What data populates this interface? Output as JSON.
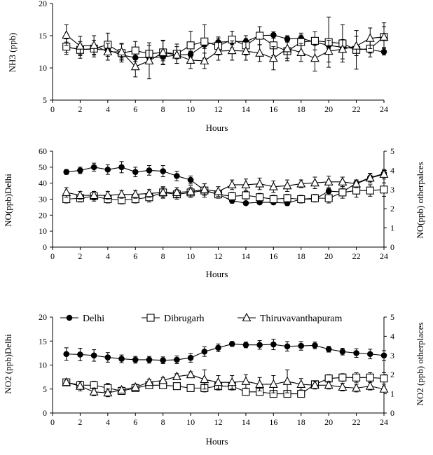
{
  "chart_data": [
    {
      "type": "line",
      "x": [
        1,
        2,
        3,
        4,
        5,
        6,
        7,
        8,
        9,
        10,
        11,
        12,
        13,
        14,
        15,
        16,
        17,
        18,
        19,
        20,
        21,
        22,
        23,
        24
      ],
      "xlabel": "Hours",
      "ylabel": "NH3 (ppb)",
      "ylim": [
        5,
        20
      ],
      "yticks": [
        5,
        10,
        15,
        20
      ],
      "xlim": [
        0,
        24
      ],
      "xticks": [
        0,
        2,
        4,
        6,
        8,
        10,
        12,
        14,
        16,
        18,
        20,
        22,
        24
      ],
      "series": [
        {
          "name": "Delhi",
          "marker": "circle",
          "axis": "left",
          "values": [
            13.2,
            12.9,
            12.9,
            12.8,
            12.0,
            11.6,
            11.6,
            11.7,
            12.0,
            12.1,
            13.6,
            14.0,
            14.1,
            14.1,
            15.0,
            15.1,
            14.5,
            14.6,
            14.0,
            13.5,
            13.2,
            13.0,
            12.8,
            12.5
          ],
          "errors": [
            0.8,
            0.8,
            0.8,
            0.6,
            0.6,
            0.6,
            0.6,
            0.6,
            0.6,
            0.5,
            0.6,
            0.6,
            0.5,
            0.5,
            0.5,
            0.5,
            0.5,
            0.5,
            0.5,
            0.5,
            0.5,
            0.5,
            0.5,
            0.5
          ]
        },
        {
          "name": "Dibrugarh",
          "marker": "square",
          "axis": "left",
          "values": [
            13.3,
            12.8,
            13.0,
            13.6,
            12.3,
            12.7,
            12.2,
            12.4,
            12.2,
            13.5,
            14.1,
            13.4,
            14.4,
            13.5,
            15.0,
            13.5,
            12.6,
            14.0,
            14.2,
            14.0,
            13.8,
            12.8,
            13.0,
            14.8
          ],
          "errors": [
            1.2,
            1.3,
            1.3,
            1.8,
            1.4,
            1.4,
            1.3,
            1.9,
            1.5,
            2.2,
            2.6,
            1.4,
            1.3,
            1.5,
            1.4,
            1.6,
            1.5,
            1.4,
            1.4,
            3.9,
            2.9,
            3.0,
            1.3,
            1.6
          ]
        },
        {
          "name": "Thiruvavanthapuram",
          "marker": "triangle",
          "axis": "left",
          "values": [
            15.1,
            13.4,
            13.5,
            12.5,
            12.5,
            10.2,
            11.1,
            12.4,
            12.0,
            11.2,
            11.1,
            12.6,
            12.7,
            12.6,
            12.3,
            11.5,
            13.0,
            12.4,
            11.5,
            12.6,
            12.9,
            13.4,
            14.6,
            14.8
          ],
          "errors": [
            1.6,
            1.5,
            1.5,
            1.3,
            1.3,
            1.6,
            2.8,
            1.8,
            1.3,
            1.3,
            1.2,
            1.4,
            1.5,
            1.4,
            1.3,
            1.8,
            1.5,
            1.4,
            2.0,
            1.7,
            1.5,
            1.5,
            1.6,
            2.2
          ]
        }
      ]
    },
    {
      "type": "line",
      "x": [
        1,
        2,
        3,
        4,
        5,
        6,
        7,
        8,
        9,
        10,
        11,
        12,
        13,
        14,
        15,
        16,
        17,
        18,
        19,
        20,
        21,
        22,
        23,
        24
      ],
      "xlabel": "Hours",
      "ylabel": "NO(ppb)Delhi",
      "y2label": "NO(ppb) otherpalces",
      "ylim": [
        0,
        60
      ],
      "yticks": [
        0,
        10,
        20,
        30,
        40,
        50,
        60
      ],
      "y2lim": [
        0,
        5
      ],
      "y2ticks": [
        0,
        1,
        2,
        3,
        4,
        5
      ],
      "xlim": [
        0,
        24
      ],
      "xticks": [
        0,
        2,
        4,
        6,
        8,
        10,
        12,
        14,
        16,
        18,
        20,
        22,
        24
      ],
      "series": [
        {
          "name": "Delhi",
          "marker": "circle",
          "axis": "left",
          "values": [
            47,
            48,
            50,
            48.5,
            50,
            47,
            48,
            47.5,
            44.5,
            42,
            35.5,
            33,
            29,
            27.5,
            28,
            28,
            27.5,
            30,
            30,
            35,
            34.5,
            40,
            43.5,
            46
          ],
          "errors": [
            1.5,
            2,
            2.5,
            3,
            3.5,
            3,
            3,
            3.5,
            3,
            2.5,
            2,
            2,
            1.5,
            1.2,
            1.2,
            1.2,
            1.5,
            1.5,
            1.5,
            1.5,
            2,
            2,
            2.5,
            2
          ]
        },
        {
          "name": "Dibrugarh",
          "marker": "square",
          "axis": "right",
          "values": [
            2.5,
            2.55,
            2.65,
            2.5,
            2.45,
            2.5,
            2.6,
            2.85,
            2.75,
            2.85,
            2.95,
            2.75,
            2.65,
            2.7,
            2.6,
            2.5,
            2.55,
            2.5,
            2.55,
            2.55,
            2.85,
            2.95,
            2.95,
            3.0
          ],
          "errors": [
            0.2,
            0.2,
            0.25,
            0.2,
            0.2,
            0.2,
            0.25,
            0.3,
            0.25,
            0.25,
            0.35,
            0.2,
            0.2,
            0.2,
            0.2,
            0.2,
            0.2,
            0.2,
            0.2,
            0.25,
            0.3,
            0.35,
            0.3,
            0.35
          ]
        },
        {
          "name": "Thiruvavanthapuram",
          "marker": "triangle",
          "axis": "right",
          "values": [
            2.85,
            2.7,
            2.7,
            2.7,
            2.75,
            2.75,
            2.8,
            2.85,
            2.85,
            2.9,
            3.0,
            2.9,
            3.25,
            3.25,
            3.3,
            3.15,
            3.2,
            3.3,
            3.35,
            3.4,
            3.4,
            3.3,
            3.6,
            3.8
          ],
          "errors": [
            0.25,
            0.2,
            0.2,
            0.2,
            0.2,
            0.2,
            0.2,
            0.25,
            0.25,
            0.3,
            0.3,
            0.25,
            0.25,
            0.3,
            0.3,
            0.3,
            0.3,
            0.2,
            0.3,
            0.3,
            0.25,
            0.2,
            0.25,
            0.25
          ]
        }
      ]
    },
    {
      "type": "line",
      "x": [
        1,
        2,
        3,
        4,
        5,
        6,
        7,
        8,
        9,
        10,
        11,
        12,
        13,
        14,
        15,
        16,
        17,
        18,
        19,
        20,
        21,
        22,
        23,
        24
      ],
      "xlabel": "Hours",
      "ylabel": "NO2 (ppb)Delhi",
      "y2label": "NO2 (ppb) otherplaces",
      "ylim": [
        0,
        20
      ],
      "yticks": [
        0,
        5,
        10,
        15,
        20
      ],
      "y2lim": [
        0,
        5
      ],
      "y2ticks": [
        0,
        1,
        2,
        3,
        4,
        5
      ],
      "xlim": [
        0,
        24
      ],
      "xticks": [
        0,
        2,
        4,
        6,
        8,
        10,
        12,
        14,
        16,
        18,
        20,
        22,
        24
      ],
      "legend": {
        "position": "top",
        "entries": [
          "Delhi",
          "Dibrugarh",
          "Thiruvavanthapuram"
        ]
      },
      "series": [
        {
          "name": "Delhi",
          "marker": "circle",
          "axis": "left",
          "values": [
            12.3,
            12.2,
            12.0,
            11.6,
            11.3,
            11.1,
            11.1,
            11.0,
            11.1,
            11.5,
            12.8,
            13.6,
            14.4,
            14.2,
            14.2,
            14.3,
            13.9,
            14.0,
            14.1,
            13.3,
            12.8,
            12.5,
            12.3,
            12.0
          ],
          "errors": [
            1.3,
            1.3,
            1.2,
            1.0,
            0.8,
            0.7,
            0.7,
            0.7,
            0.8,
            0.9,
            1.0,
            0.8,
            0.5,
            0.6,
            0.9,
            1.1,
            1.0,
            0.9,
            0.7,
            0.6,
            0.7,
            0.9,
            1.0,
            1.0
          ]
        },
        {
          "name": "Dibrugarh",
          "marker": "square",
          "axis": "right",
          "values": [
            1.6,
            1.45,
            1.45,
            1.3,
            1.15,
            1.3,
            1.45,
            1.45,
            1.4,
            1.3,
            1.3,
            1.4,
            1.4,
            1.1,
            1.1,
            1.0,
            1.0,
            1.0,
            1.5,
            1.8,
            1.85,
            1.85,
            1.85,
            1.8
          ],
          "errors": [
            0.15,
            0.2,
            0.2,
            0.25,
            0.1,
            0.15,
            0.15,
            0.15,
            0.15,
            0.15,
            0.2,
            0.2,
            0.2,
            0.15,
            0.15,
            0.15,
            0.15,
            0.15,
            0.15,
            0.2,
            0.2,
            0.25,
            0.25,
            0.3
          ]
        },
        {
          "name": "Thiruvavanthapuram",
          "marker": "triangle",
          "axis": "right",
          "values": [
            1.6,
            1.4,
            1.1,
            1.05,
            1.2,
            1.35,
            1.6,
            1.7,
            1.9,
            2.0,
            1.75,
            1.6,
            1.6,
            1.65,
            1.5,
            1.5,
            1.65,
            1.5,
            1.45,
            1.45,
            1.35,
            1.3,
            1.4,
            1.25
          ],
          "errors": [
            0.1,
            0.25,
            0.2,
            0.2,
            0.15,
            0.15,
            0.15,
            0.15,
            0.15,
            0.15,
            0.5,
            0.35,
            0.35,
            0.35,
            0.35,
            0.45,
            0.6,
            0.3,
            0.2,
            0.2,
            0.2,
            0.2,
            0.2,
            0.15
          ]
        }
      ]
    }
  ]
}
